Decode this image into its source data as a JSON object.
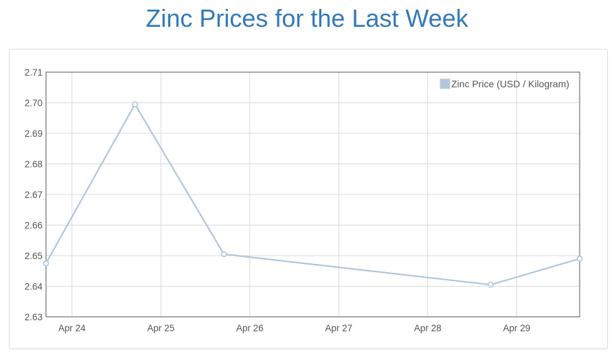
{
  "chart_data": {
    "type": "line",
    "title": "Zinc Prices for the Last Week",
    "xlabel": "",
    "ylabel": "",
    "x_ticks": [
      "Apr 24",
      "Apr 25",
      "Apr 26",
      "Apr 27",
      "Apr 28",
      "Apr 29"
    ],
    "ylim": [
      2.63,
      2.71
    ],
    "y_ticks": [
      "2.71",
      "2.70",
      "2.69",
      "2.68",
      "2.67",
      "2.66",
      "2.65",
      "2.64",
      "2.63"
    ],
    "grid": true,
    "legend_position": "top-right",
    "series": [
      {
        "name": "Zinc Price (USD / Kilogram)",
        "color": "#afc6dc",
        "points": [
          {
            "x": "Apr 23 17:00",
            "y": 2.6475
          },
          {
            "x": "Apr 24 17:00",
            "y": 2.6995
          },
          {
            "x": "Apr 25 17:00",
            "y": 2.6505
          },
          {
            "x": "Apr 28 17:00",
            "y": 2.6405
          },
          {
            "x": "Apr 29 17:00",
            "y": 2.649
          }
        ]
      }
    ]
  }
}
